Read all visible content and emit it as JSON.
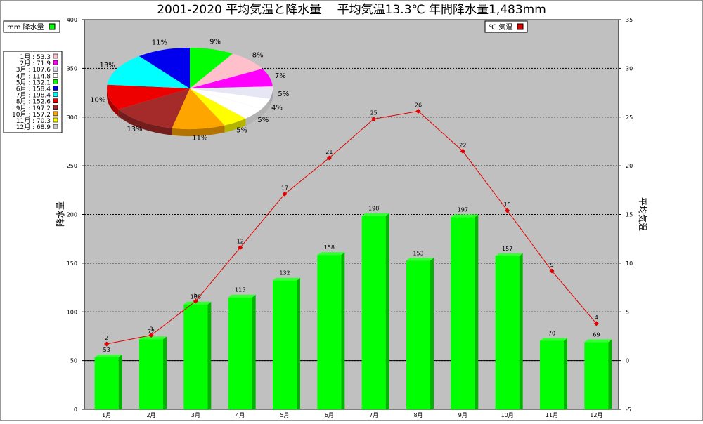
{
  "chart_data": {
    "title": "2001-2020 平均気温と降水量　 平均気温13.3℃ 年間降水量1,483mm",
    "type": "bar+line+pie",
    "categories": [
      "1月",
      "2月",
      "3月",
      "4月",
      "5月",
      "6月",
      "7月",
      "8月",
      "9月",
      "10月",
      "11月",
      "12月"
    ],
    "precip": {
      "legend": "mm 降水量",
      "axis_label": "降水量",
      "color": "#00ff00",
      "values": [
        53.3,
        71.9,
        107.6,
        114.8,
        132.1,
        158.4,
        198.4,
        152.6,
        197.2,
        157.2,
        70.3,
        68.9
      ],
      "data_labels": [
        "53",
        "72",
        "108",
        "115",
        "132",
        "158",
        "198",
        "153",
        "197",
        "157",
        "70",
        "69"
      ],
      "ylim": [
        0,
        400
      ],
      "ticks": [
        "0",
        "50",
        "100",
        "150",
        "200",
        "250",
        "300",
        "350",
        "400"
      ]
    },
    "temp": {
      "legend": "℃ 気温",
      "axis_label": "平均気温",
      "color": "#e00000",
      "values": [
        1.7,
        2.6,
        6.1,
        11.6,
        17.1,
        20.8,
        24.8,
        25.6,
        21.5,
        15.4,
        9.2,
        3.8
      ],
      "data_labels": [
        "2",
        "3",
        "6",
        "12",
        "17",
        "21",
        "25",
        "26",
        "22",
        "15",
        "9",
        "4"
      ],
      "ylim": [
        -5,
        35
      ],
      "ticks": [
        "-5",
        "0",
        "5",
        "10",
        "15",
        "20",
        "25",
        "30",
        "35"
      ]
    },
    "monthly_legend": [
      "1月 : 53.3",
      "2月 : 71.9",
      "3月 : 107.6",
      "4月 : 114.8",
      "5月 : 132.1",
      "6月 : 158.4",
      "7月 : 198.4",
      "8月 : 152.6",
      "9月 : 197.2",
      "10月 : 157.2",
      "11月 : 70.3",
      "12月 : 68.9"
    ],
    "pie": {
      "colors": [
        "#ffffff",
        "#ffc0cb",
        "#ff00ff",
        "#dcdcf0",
        "#ffffff",
        "#00ff00",
        "#0000ee",
        "#00ffff",
        "#ee0000",
        "#a52a2a",
        "#ffa500",
        "#ffff00",
        "#c8c8c8"
      ],
      "slices": [
        {
          "label": "9%",
          "color": "#00ff00",
          "value": 8.9
        },
        {
          "label": "8%",
          "color": "#ffc0cb",
          "value": 8.5
        },
        {
          "label": "7%",
          "color": "#ff00ff",
          "value": 7.4
        },
        {
          "label": "5%",
          "color": "#e6e6f5",
          "value": 5.0
        },
        {
          "label": "4%",
          "color": "#ffffff",
          "value": 4.4
        },
        {
          "label": "5%",
          "color": "#ffffff",
          "value": 5.0
        },
        {
          "label": "5%",
          "color": "#ffff00",
          "value": 5.0
        },
        {
          "label": "11%",
          "color": "#ffa500",
          "value": 10.6
        },
        {
          "label": "13%",
          "color": "#a52a2a",
          "value": 13.3
        },
        {
          "label": "10%",
          "color": "#ee0000",
          "value": 10.3
        },
        {
          "label": "13%",
          "color": "#00ffff",
          "value": 13.4
        },
        {
          "label": "11%",
          "color": "#0000ee",
          "value": 10.7
        }
      ]
    },
    "plot_bg": "#c0c0c0",
    "grid": "dotted"
  }
}
